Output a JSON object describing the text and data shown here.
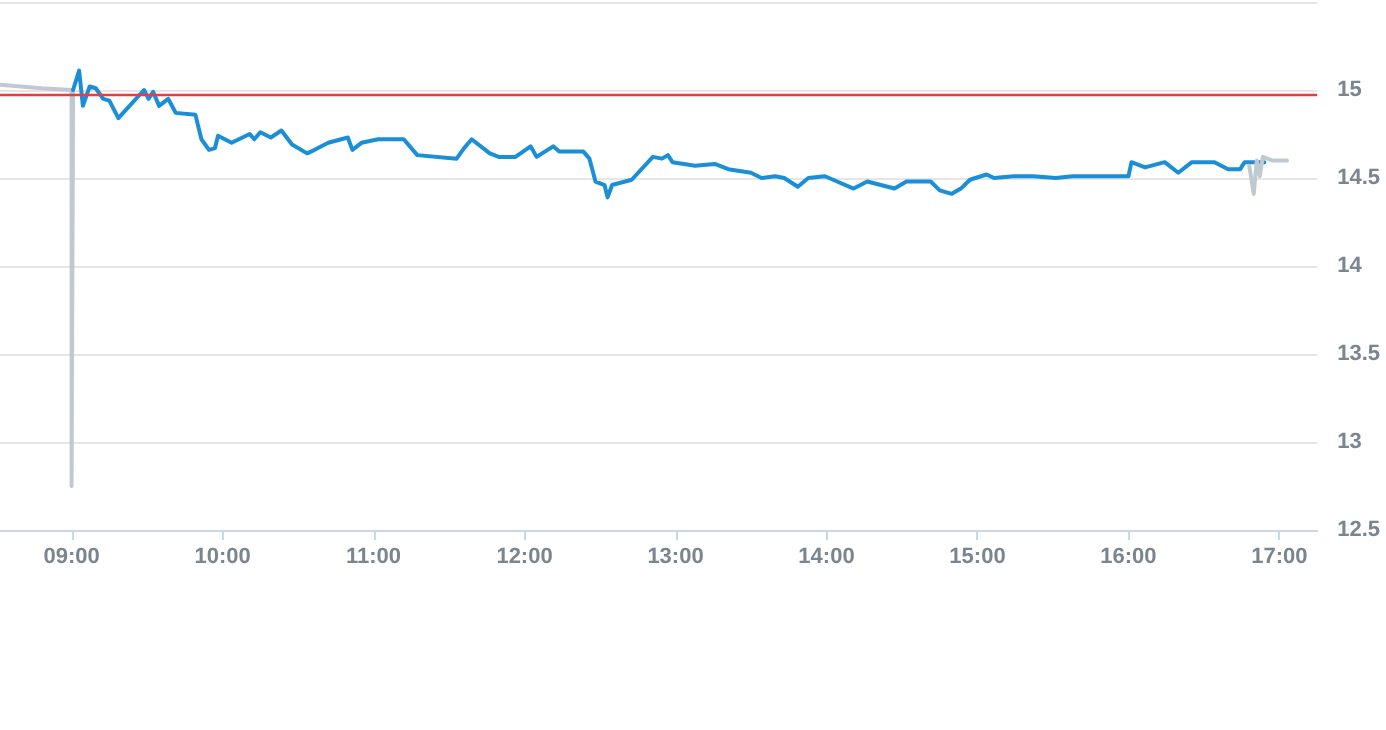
{
  "chart_data": {
    "type": "line",
    "xlim": [
      8.526,
      17.25
    ],
    "ylim": [
      12.5,
      15.5
    ],
    "xticks": [
      {
        "value": 9,
        "label": "09:00"
      },
      {
        "value": 10,
        "label": "10:00"
      },
      {
        "value": 11,
        "label": "11:00"
      },
      {
        "value": 12,
        "label": "12:00"
      },
      {
        "value": 13,
        "label": "13:00"
      },
      {
        "value": 14,
        "label": "14:00"
      },
      {
        "value": 15,
        "label": "15:00"
      },
      {
        "value": 16,
        "label": "16:00"
      },
      {
        "value": 17,
        "label": "17:00"
      }
    ],
    "yticks": [
      12.5,
      13,
      13.5,
      14,
      14.5,
      15
    ],
    "grid": "y",
    "marker": "none",
    "line_style": "solid",
    "ref_lines": [
      {
        "axis": "y",
        "value": 14.98,
        "color": "#e04040"
      }
    ],
    "series": [
      {
        "color": "#bfc9d1",
        "x": [
          8.526,
          8.8,
          9.0,
          9.0,
          9.01
        ],
        "values": [
          15.03,
          15.01,
          15.0,
          12.75,
          15.0
        ]
      },
      {
        "color": "#1a8fd8",
        "x": [
          9.01,
          9.05,
          9.075,
          9.12,
          9.16,
          9.21,
          9.25,
          9.31,
          9.48,
          9.51,
          9.54,
          9.58,
          9.64,
          9.69,
          9.82,
          9.86,
          9.91,
          9.95,
          9.97,
          10.06,
          10.18,
          10.21,
          10.25,
          10.32,
          10.39,
          10.46,
          10.56,
          10.61,
          10.7,
          10.83,
          10.86,
          10.92,
          11.03,
          11.2,
          11.29,
          11.55,
          11.6,
          11.65,
          11.77,
          11.83,
          11.94,
          12.04,
          12.08,
          12.19,
          12.23,
          12.39,
          12.43,
          12.47,
          12.53,
          12.55,
          12.58,
          12.71,
          12.85,
          12.91,
          12.95,
          12.98,
          13.13,
          13.26,
          13.35,
          13.5,
          13.57,
          13.66,
          13.72,
          13.81,
          13.88,
          13.99,
          14.07,
          14.18,
          14.27,
          14.45,
          14.53,
          14.69,
          14.75,
          14.83,
          14.89,
          14.95,
          15.06,
          15.11,
          15.24,
          15.37,
          15.52,
          15.63,
          15.8,
          16.0,
          16.02,
          16.11,
          16.24,
          16.33,
          16.42,
          16.57,
          16.66,
          16.74,
          16.77,
          16.9
        ],
        "values": [
          15.0,
          15.11,
          14.91,
          15.02,
          15.01,
          14.95,
          14.94,
          14.84,
          15.0,
          14.95,
          14.99,
          14.91,
          14.95,
          14.87,
          14.86,
          14.72,
          14.66,
          14.67,
          14.74,
          14.7,
          14.75,
          14.72,
          14.76,
          14.73,
          14.77,
          14.69,
          14.64,
          14.66,
          14.7,
          14.73,
          14.66,
          14.7,
          14.72,
          14.72,
          14.63,
          14.61,
          14.67,
          14.72,
          14.64,
          14.62,
          14.62,
          14.68,
          14.62,
          14.68,
          14.65,
          14.65,
          14.61,
          14.48,
          14.46,
          14.39,
          14.46,
          14.49,
          14.62,
          14.61,
          14.63,
          14.59,
          14.57,
          14.58,
          14.55,
          14.53,
          14.5,
          14.51,
          14.5,
          14.45,
          14.5,
          14.51,
          14.48,
          14.44,
          14.48,
          14.44,
          14.48,
          14.48,
          14.43,
          14.41,
          14.44,
          14.49,
          14.52,
          14.5,
          14.51,
          14.51,
          14.5,
          14.51,
          14.51,
          14.51,
          14.59,
          14.56,
          14.59,
          14.53,
          14.59,
          14.59,
          14.55,
          14.55,
          14.59,
          14.59
        ]
      },
      {
        "color": "#bfc9d1",
        "x": [
          16.8,
          16.83,
          16.85,
          16.87,
          16.89,
          16.95,
          17.05
        ],
        "values": [
          14.57,
          14.41,
          14.6,
          14.51,
          14.62,
          14.6,
          14.6
        ]
      }
    ]
  }
}
